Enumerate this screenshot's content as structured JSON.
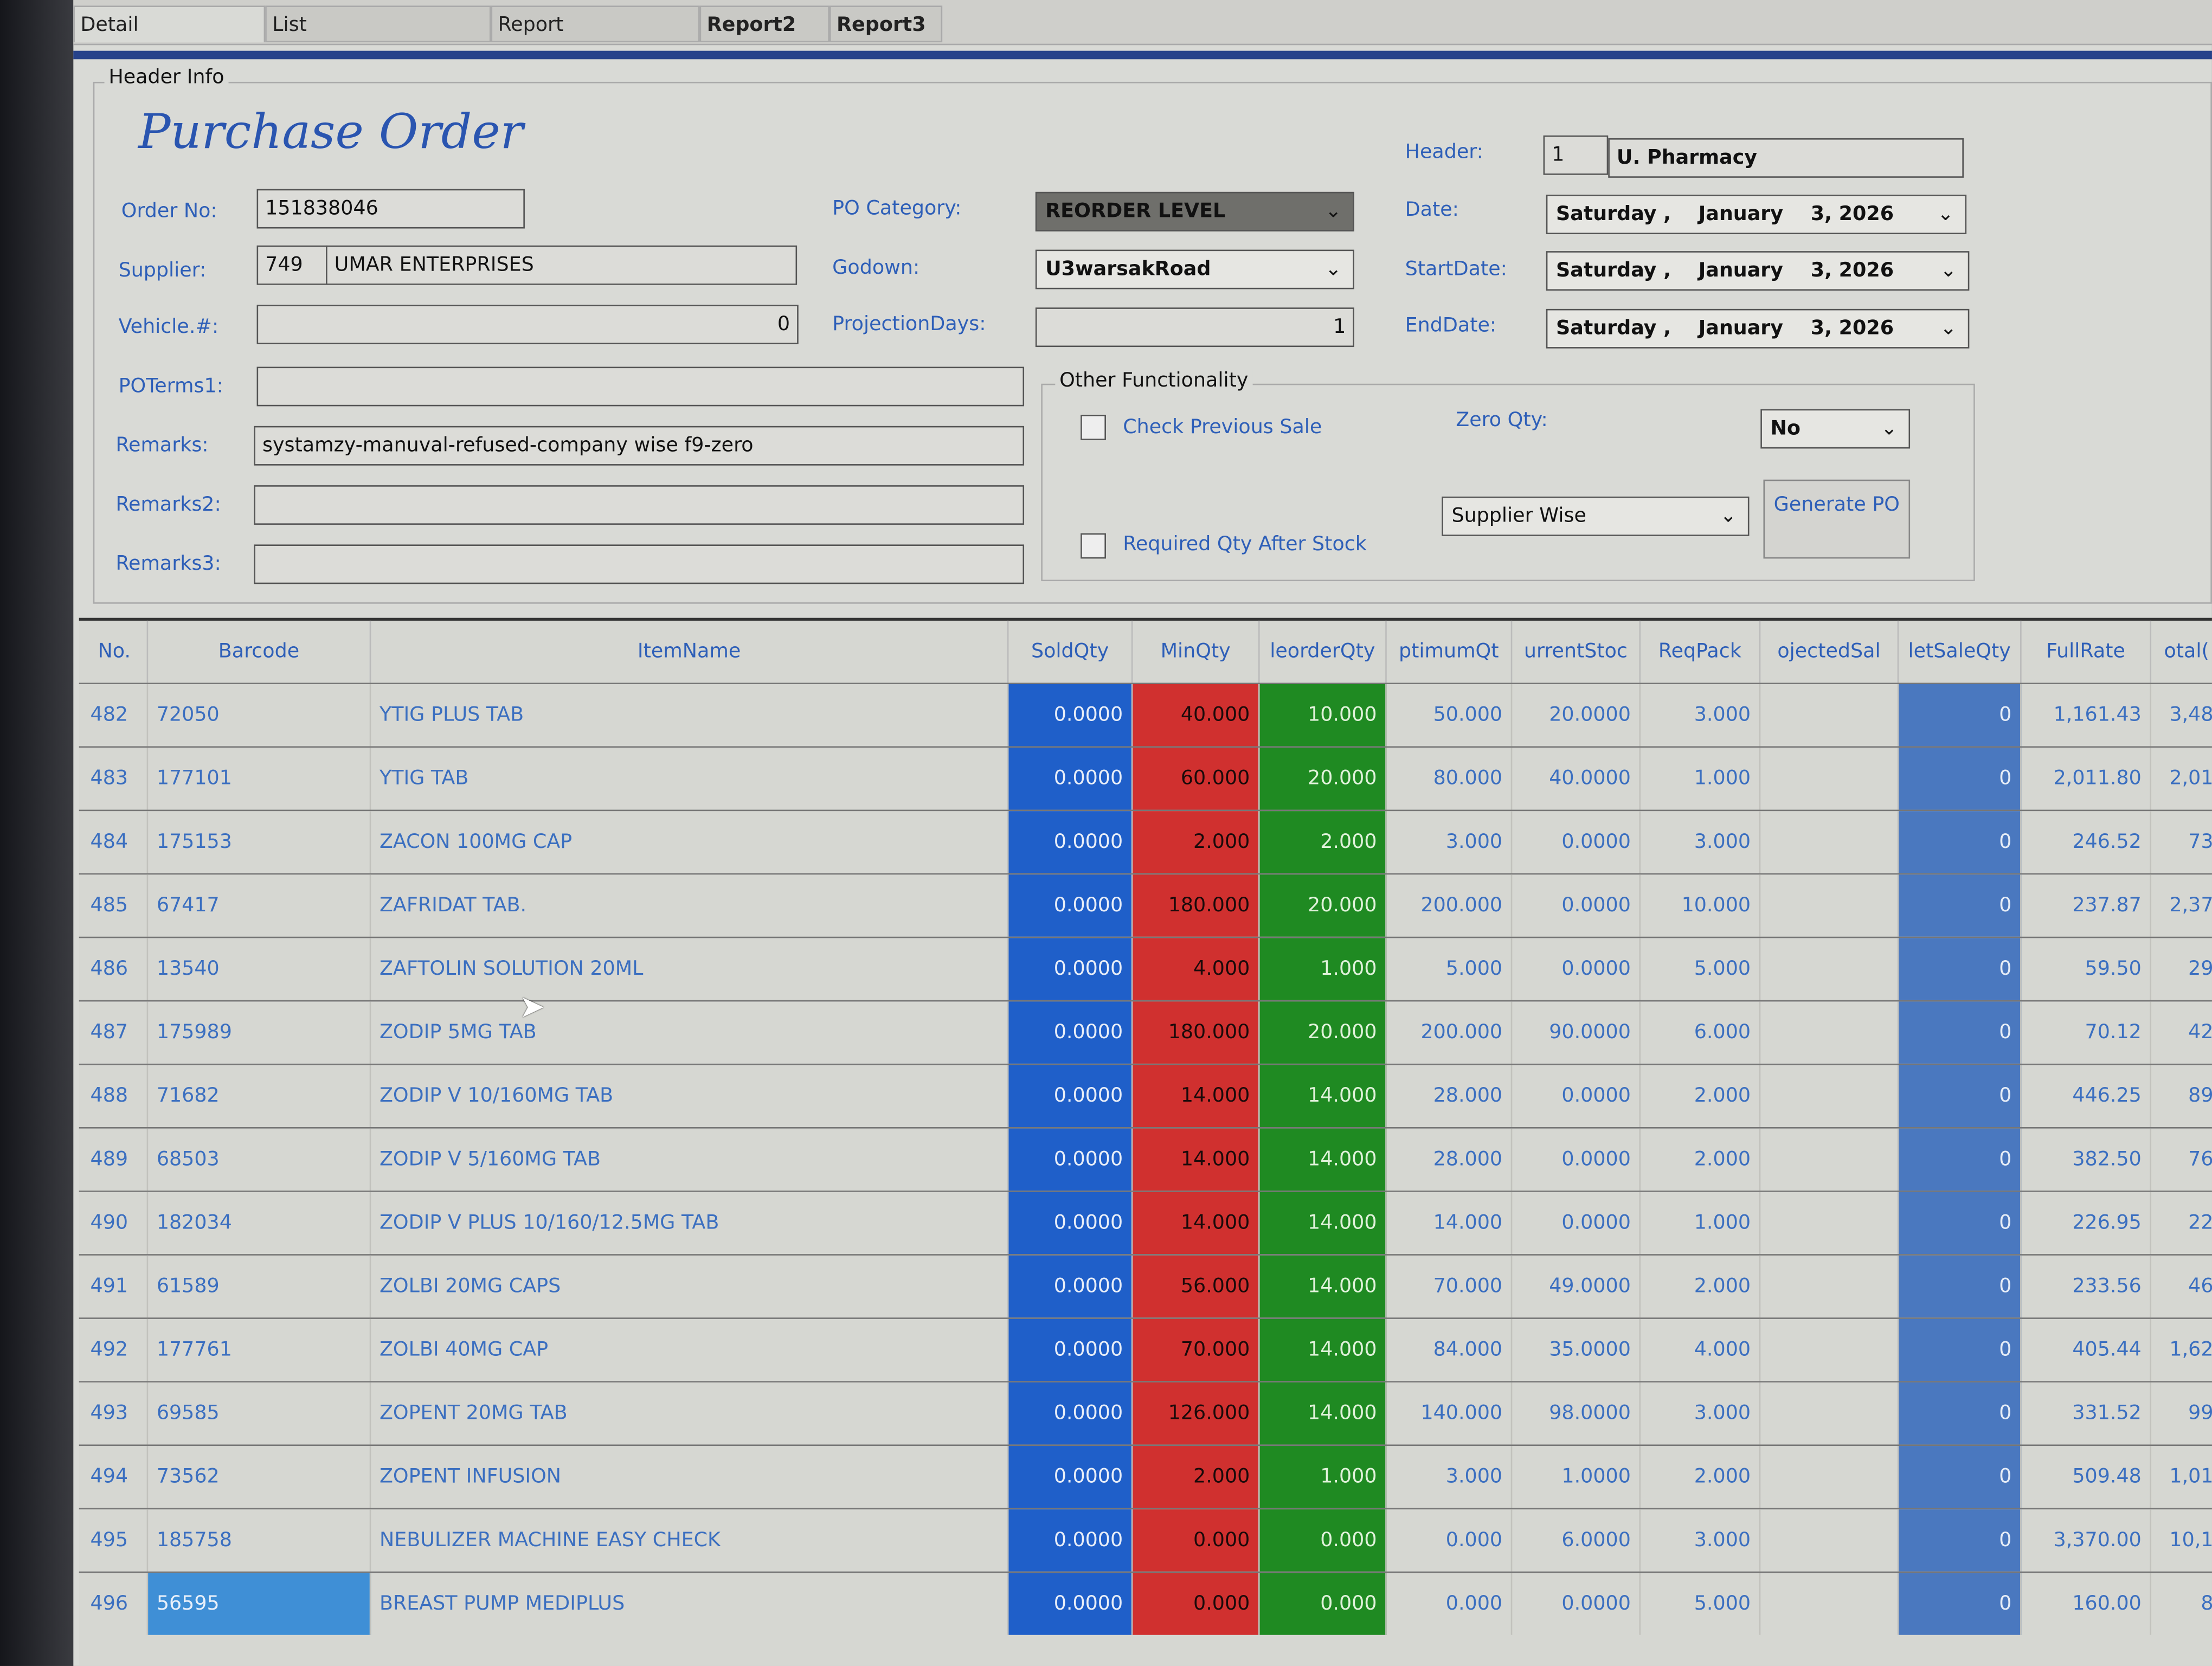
{
  "tabs": [
    "Detail",
    "List",
    "Report",
    "Report2",
    "Report3"
  ],
  "header_info_label": "Header Info",
  "form_title": "Purchase Order",
  "fields": {
    "order_no": {
      "label": "Order No:",
      "value": "151838046"
    },
    "supplier": {
      "label": "Supplier:",
      "code": "749",
      "name": "UMAR ENTERPRISES"
    },
    "vehicle": {
      "label": "Vehicle.#:",
      "value": "0"
    },
    "poterms1": {
      "label": "POTerms1:",
      "value": ""
    },
    "remarks": {
      "label": "Remarks:",
      "value": "systamzy-manuval-refused-company wise f9-zero"
    },
    "remarks2": {
      "label": "Remarks2:",
      "value": ""
    },
    "remarks3": {
      "label": "Remarks3:",
      "value": ""
    },
    "po_category": {
      "label": "PO Category:",
      "value": "REORDER LEVEL"
    },
    "godown": {
      "label": "Godown:",
      "value": "U3warsakRoad"
    },
    "projection_days": {
      "label": "ProjectionDays:",
      "value": "1"
    },
    "header": {
      "label": "Header:",
      "code": "1",
      "name": "U. Pharmacy"
    },
    "date": {
      "label": "Date:",
      "day": "Saturday",
      "month": "January",
      "rest": "3, 2026"
    },
    "start_date": {
      "label": "StartDate:",
      "day": "Saturday",
      "month": "January",
      "rest": "3, 2026"
    },
    "end_date": {
      "label": "EndDate:",
      "day": "Saturday",
      "month": "January",
      "rest": "3, 2026"
    }
  },
  "other": {
    "label": "Other Functionality",
    "check_previous_sale": {
      "label": "Check Previous Sale",
      "checked": false
    },
    "required_qty": {
      "label": "Required Qty After Stock",
      "checked": false
    },
    "zero_qty": {
      "label": "Zero Qty:",
      "value": "No"
    },
    "mode": {
      "value": "Supplier Wise"
    },
    "generate_po": "Generate PO"
  },
  "colors": {
    "sold": "#1f5fc9",
    "min": "#d0302f",
    "reorder": "#1f8a22",
    "netsale": "#4a78bf",
    "accent": "#2e5fb8"
  },
  "grid": {
    "columns": [
      "No.",
      "Barcode",
      "ItemName",
      "SoldQty",
      "MinQty",
      "ReorderQty",
      "OptimumQty",
      "CurrentStock",
      "ReqPack",
      "ProjectedSale",
      "NetSaleQty",
      "FullRate",
      "Total"
    ],
    "column_captions": [
      "No.",
      "Barcode",
      "ItemName",
      "SoldQty",
      "MinQty",
      "leorderQty",
      "ptimumQt",
      "urrentStoc",
      "ReqPack",
      "ojectedSal",
      "letSaleQty",
      "FullRate",
      "otal("
    ],
    "rows": [
      [
        "482",
        "72050",
        "YTIG PLUS TAB",
        "0.0000",
        "40.000",
        "10.000",
        "50.000",
        "20.0000",
        "3.000",
        "",
        "0",
        "1,161.43",
        "3,48"
      ],
      [
        "483",
        "177101",
        "YTIG TAB",
        "0.0000",
        "60.000",
        "20.000",
        "80.000",
        "40.0000",
        "1.000",
        "",
        "0",
        "2,011.80",
        "2,01"
      ],
      [
        "484",
        "175153",
        "ZACON 100MG CAP",
        "0.0000",
        "2.000",
        "2.000",
        "3.000",
        "0.0000",
        "3.000",
        "",
        "0",
        "246.52",
        "73"
      ],
      [
        "485",
        "67417",
        "ZAFRIDAT TAB.",
        "0.0000",
        "180.000",
        "20.000",
        "200.000",
        "0.0000",
        "10.000",
        "",
        "0",
        "237.87",
        "2,37"
      ],
      [
        "486",
        "13540",
        "ZAFTOLIN SOLUTION 20ML",
        "0.0000",
        "4.000",
        "1.000",
        "5.000",
        "0.0000",
        "5.000",
        "",
        "0",
        "59.50",
        "29"
      ],
      [
        "487",
        "175989",
        "ZODIP 5MG TAB",
        "0.0000",
        "180.000",
        "20.000",
        "200.000",
        "90.0000",
        "6.000",
        "",
        "0",
        "70.12",
        "42"
      ],
      [
        "488",
        "71682",
        "ZODIP V 10/160MG TAB",
        "0.0000",
        "14.000",
        "14.000",
        "28.000",
        "0.0000",
        "2.000",
        "",
        "0",
        "446.25",
        "89"
      ],
      [
        "489",
        "68503",
        "ZODIP V 5/160MG TAB",
        "0.0000",
        "14.000",
        "14.000",
        "28.000",
        "0.0000",
        "2.000",
        "",
        "0",
        "382.50",
        "76"
      ],
      [
        "490",
        "182034",
        "ZODIP V PLUS 10/160/12.5MG TAB",
        "0.0000",
        "14.000",
        "14.000",
        "14.000",
        "0.0000",
        "1.000",
        "",
        "0",
        "226.95",
        "22"
      ],
      [
        "491",
        "61589",
        "ZOLBI 20MG CAPS",
        "0.0000",
        "56.000",
        "14.000",
        "70.000",
        "49.0000",
        "2.000",
        "",
        "0",
        "233.56",
        "46"
      ],
      [
        "492",
        "177761",
        "ZOLBI 40MG CAP",
        "0.0000",
        "70.000",
        "14.000",
        "84.000",
        "35.0000",
        "4.000",
        "",
        "0",
        "405.44",
        "1,62"
      ],
      [
        "493",
        "69585",
        "ZOPENT 20MG TAB",
        "0.0000",
        "126.000",
        "14.000",
        "140.000",
        "98.0000",
        "3.000",
        "",
        "0",
        "331.52",
        "99"
      ],
      [
        "494",
        "73562",
        "ZOPENT INFUSION",
        "0.0000",
        "2.000",
        "1.000",
        "3.000",
        "1.0000",
        "2.000",
        "",
        "0",
        "509.48",
        "1,01"
      ],
      [
        "495",
        "185758",
        "NEBULIZER MACHINE EASY CHECK",
        "0.0000",
        "0.000",
        "0.000",
        "0.000",
        "6.0000",
        "3.000",
        "",
        "0",
        "3,370.00",
        "10,1"
      ],
      [
        "496",
        "56595",
        "BREAST PUMP MEDIPLUS",
        "0.0000",
        "0.000",
        "0.000",
        "0.000",
        "0.0000",
        "5.000",
        "",
        "0",
        "160.00",
        "8"
      ]
    ],
    "selected_row": 14
  }
}
